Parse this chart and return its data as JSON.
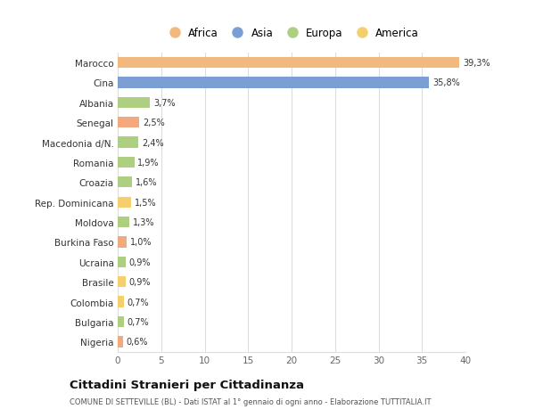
{
  "categories": [
    "Nigeria",
    "Bulgaria",
    "Colombia",
    "Brasile",
    "Ucraina",
    "Burkina Faso",
    "Moldova",
    "Rep. Dominicana",
    "Croazia",
    "Romania",
    "Macedonia d/N.",
    "Senegal",
    "Albania",
    "Cina",
    "Marocco"
  ],
  "values": [
    0.6,
    0.7,
    0.7,
    0.9,
    0.9,
    1.0,
    1.3,
    1.5,
    1.6,
    1.9,
    2.4,
    2.5,
    3.7,
    35.8,
    39.3
  ],
  "labels": [
    "0,6%",
    "0,7%",
    "0,7%",
    "0,9%",
    "0,9%",
    "1,0%",
    "1,3%",
    "1,5%",
    "1,6%",
    "1,9%",
    "2,4%",
    "2,5%",
    "3,7%",
    "35,8%",
    "39,3%"
  ],
  "colors": [
    "#f2a97e",
    "#aecf82",
    "#f5ce6e",
    "#f5ce6e",
    "#aecf82",
    "#f2a97e",
    "#aecf82",
    "#f5ce6e",
    "#aecf82",
    "#aecf82",
    "#aecf82",
    "#f2a97e",
    "#aecf82",
    "#7b9fd4",
    "#f2b97e"
  ],
  "legend_labels": [
    "Africa",
    "Asia",
    "Europa",
    "America"
  ],
  "legend_colors": [
    "#f2b97e",
    "#7b9fd4",
    "#aecf82",
    "#f5ce6e"
  ],
  "xlim": [
    0,
    40
  ],
  "xticks": [
    0,
    5,
    10,
    15,
    20,
    25,
    30,
    35,
    40
  ],
  "title": "Cittadini Stranieri per Cittadinanza",
  "subtitle": "COMUNE DI SETTEVILLE (BL) - Dati ISTAT al 1° gennaio di ogni anno - Elaborazione TUTTITALIA.IT",
  "bg_color": "#ffffff",
  "bar_height": 0.55,
  "grid_color": "#dddddd",
  "label_color": "#333333",
  "axis_label_color": "#666666"
}
